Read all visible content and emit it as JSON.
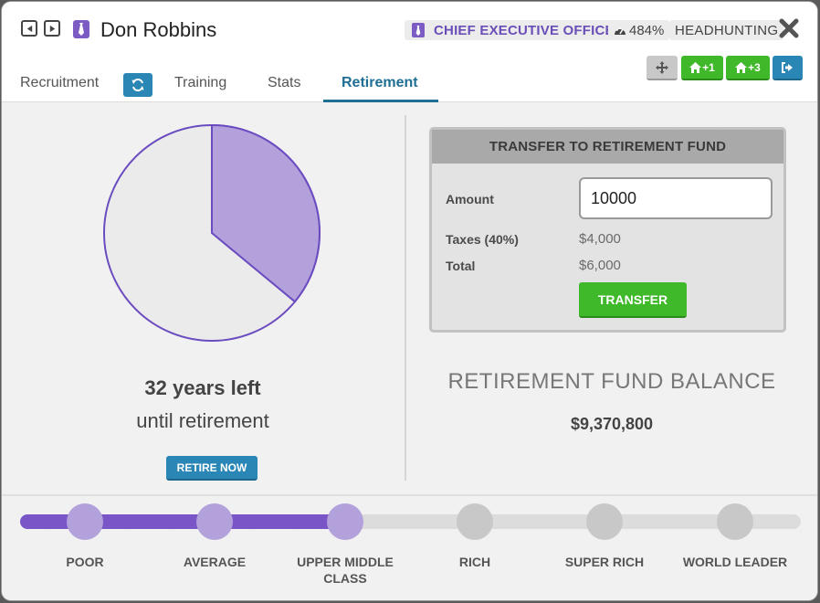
{
  "header": {
    "name": "Don Robbins",
    "title": "CHIEF EXECUTIVE OFFICER",
    "performance": "484%",
    "status": "HEADHUNTING"
  },
  "tabs": [
    {
      "label": "Recruitment"
    },
    {
      "label": "Training"
    },
    {
      "label": "Stats"
    },
    {
      "label": "Retirement",
      "active": true
    }
  ],
  "toolbar": {
    "plus1": "+1",
    "plus3": "+3"
  },
  "retirement": {
    "years_left": "32 years left",
    "until": "until retirement",
    "retire_button": "RETIRE NOW",
    "progress_fraction": 0.36
  },
  "transfer": {
    "heading": "TRANSFER TO RETIREMENT FUND",
    "amount_label": "Amount",
    "amount_value": "10000",
    "taxes_label": "Taxes (40%)",
    "taxes_value": "$4,000",
    "total_label": "Total",
    "total_value": "$6,000",
    "button": "TRANSFER"
  },
  "fund": {
    "title": "RETIREMENT FUND BALANCE",
    "balance": "$9,370,800"
  },
  "levels": [
    {
      "label": "POOR",
      "reached": true
    },
    {
      "label": "AVERAGE",
      "reached": true
    },
    {
      "label": "UPPER MIDDLE CLASS",
      "reached": true
    },
    {
      "label": "RICH",
      "reached": false
    },
    {
      "label": "SUPER RICH",
      "reached": false
    },
    {
      "label": "WORLD LEADER",
      "reached": false
    }
  ],
  "colors": {
    "accent_purple": "#7a55c8",
    "accent_blue": "#2a87b5",
    "accent_green": "#3fb82a"
  }
}
